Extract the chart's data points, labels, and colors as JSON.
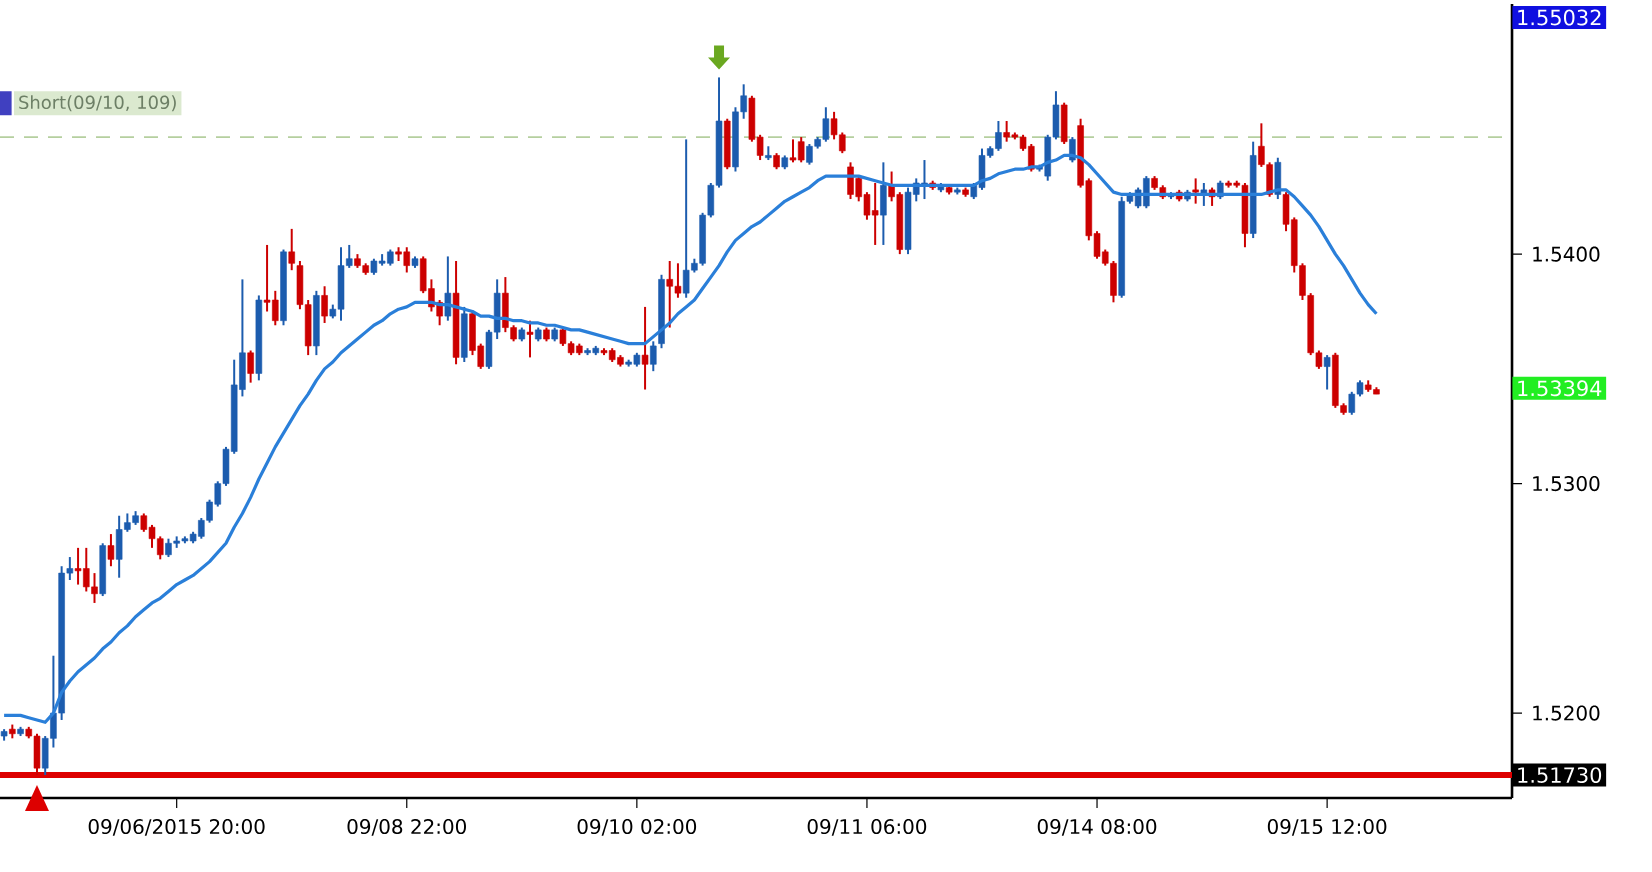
{
  "chart_data": {
    "type": "candlestick",
    "categories": [
      null,
      null,
      null,
      null,
      null,
      null,
      null,
      null,
      null,
      null,
      null,
      null,
      null,
      null,
      null,
      null,
      null,
      null,
      null,
      null,
      null,
      "09/06/2015 20:00",
      null,
      null,
      null,
      null,
      null,
      null,
      null,
      null,
      null,
      null,
      null,
      null,
      null,
      null,
      null,
      null,
      null,
      null,
      null,
      null,
      null,
      null,
      null,
      null,
      null,
      null,
      null,
      "09/08 22:00",
      null,
      null,
      null,
      null,
      null,
      null,
      null,
      null,
      null,
      null,
      null,
      null,
      null,
      null,
      null,
      null,
      null,
      null,
      null,
      null,
      null,
      null,
      null,
      null,
      null,
      null,
      null,
      "09/10 02:00",
      null,
      null,
      null,
      null,
      null,
      null,
      null,
      null,
      null,
      null,
      null,
      null,
      null,
      null,
      null,
      null,
      null,
      null,
      null,
      null,
      null,
      null,
      null,
      null,
      null,
      null,
      null,
      "09/11 06:00",
      null,
      null,
      null,
      null,
      null,
      null,
      null,
      null,
      null,
      null,
      null,
      null,
      null,
      null,
      null,
      null,
      null,
      null,
      null,
      null,
      null,
      null,
      null,
      null,
      null,
      null,
      null,
      "09/14 08:00",
      null,
      null,
      null,
      null,
      null,
      null,
      null,
      null,
      null,
      null,
      null,
      null,
      null,
      null,
      null,
      null,
      null,
      null,
      null,
      null,
      null,
      null,
      null,
      null,
      null,
      null,
      null,
      "09/15 12:00",
      null,
      null,
      null,
      null,
      null,
      null
    ],
    "ohlc": [
      [
        1.519,
        1.5193,
        1.5188,
        1.5192
      ],
      [
        1.5193,
        1.5195,
        1.5189,
        1.5191
      ],
      [
        1.5191,
        1.5194,
        1.519,
        1.5193
      ],
      [
        1.5193,
        1.5194,
        1.5189,
        1.519
      ],
      [
        1.519,
        1.5191,
        1.5173,
        1.5176
      ],
      [
        1.5176,
        1.519,
        1.5173,
        1.5189
      ],
      [
        1.5189,
        1.5225,
        1.5185,
        1.52
      ],
      [
        1.52,
        1.5264,
        1.5197,
        1.5261
      ],
      [
        1.5261,
        1.5268,
        1.5258,
        1.5263
      ],
      [
        1.5263,
        1.5272,
        1.5256,
        1.5262
      ],
      [
        1.5263,
        1.5272,
        1.5253,
        1.5255
      ],
      [
        1.5255,
        1.5261,
        1.5248,
        1.5252
      ],
      [
        1.5252,
        1.5274,
        1.5251,
        1.5273
      ],
      [
        1.5273,
        1.5278,
        1.5264,
        1.5267
      ],
      [
        1.5267,
        1.5286,
        1.5259,
        1.528
      ],
      [
        1.528,
        1.5287,
        1.5279,
        1.5283
      ],
      [
        1.5283,
        1.5288,
        1.5282,
        1.5286
      ],
      [
        1.5286,
        1.5287,
        1.5279,
        1.528
      ],
      [
        1.5281,
        1.5282,
        1.5272,
        1.5276
      ],
      [
        1.5276,
        1.5277,
        1.5267,
        1.5269
      ],
      [
        1.5269,
        1.5276,
        1.5268,
        1.5274
      ],
      [
        1.5274,
        1.5277,
        1.5272,
        1.5275
      ],
      [
        1.5275,
        1.5277,
        1.5274,
        1.5276
      ],
      [
        1.5275,
        1.5279,
        1.5274,
        1.5278
      ],
      [
        1.5277,
        1.5285,
        1.5276,
        1.5284
      ],
      [
        1.5284,
        1.5293,
        1.5283,
        1.5292
      ],
      [
        1.5291,
        1.5301,
        1.529,
        1.53
      ],
      [
        1.53,
        1.5316,
        1.5299,
        1.5315
      ],
      [
        1.5314,
        1.5354,
        1.5313,
        1.5343
      ],
      [
        1.5341,
        1.5389,
        1.5338,
        1.5357
      ],
      [
        1.5357,
        1.5358,
        1.5344,
        1.5348
      ],
      [
        1.5348,
        1.5382,
        1.5345,
        1.538
      ],
      [
        1.538,
        1.5404,
        1.5375,
        1.5379
      ],
      [
        1.538,
        1.5384,
        1.5369,
        1.5371
      ],
      [
        1.5371,
        1.5402,
        1.5369,
        1.5401
      ],
      [
        1.5401,
        1.5411,
        1.5393,
        1.5396
      ],
      [
        1.5395,
        1.5397,
        1.5376,
        1.5378
      ],
      [
        1.5378,
        1.538,
        1.5356,
        1.536
      ],
      [
        1.536,
        1.5384,
        1.5356,
        1.5382
      ],
      [
        1.5382,
        1.5386,
        1.537,
        1.5373
      ],
      [
        1.5373,
        1.5378,
        1.5372,
        1.5376
      ],
      [
        1.5376,
        1.5403,
        1.5371,
        1.5395
      ],
      [
        1.5395,
        1.5404,
        1.5394,
        1.5398
      ],
      [
        1.5398,
        1.54,
        1.5394,
        1.5395
      ],
      [
        1.5395,
        1.5396,
        1.5391,
        1.5392
      ],
      [
        1.5392,
        1.5398,
        1.5391,
        1.5397
      ],
      [
        1.5396,
        1.54,
        1.5395,
        1.5397
      ],
      [
        1.5396,
        1.5402,
        1.5395,
        1.5401
      ],
      [
        1.5401,
        1.5403,
        1.5397,
        1.54
      ],
      [
        1.5401,
        1.5403,
        1.5392,
        1.5395
      ],
      [
        1.5395,
        1.5399,
        1.5394,
        1.5398
      ],
      [
        1.5398,
        1.5399,
        1.5383,
        1.5384
      ],
      [
        1.5385,
        1.5389,
        1.5375,
        1.5377
      ],
      [
        1.5379,
        1.538,
        1.5369,
        1.5373
      ],
      [
        1.5373,
        1.5399,
        1.5371,
        1.5383
      ],
      [
        1.5383,
        1.5397,
        1.5352,
        1.5355
      ],
      [
        1.5355,
        1.5377,
        1.5353,
        1.5374
      ],
      [
        1.5374,
        1.5375,
        1.5356,
        1.5358
      ],
      [
        1.536,
        1.5361,
        1.535,
        1.5351
      ],
      [
        1.5351,
        1.5367,
        1.535,
        1.5366
      ],
      [
        1.5366,
        1.5389,
        1.5363,
        1.5383
      ],
      [
        1.5383,
        1.539,
        1.5366,
        1.5368
      ],
      [
        1.5368,
        1.5369,
        1.5362,
        1.5363
      ],
      [
        1.5363,
        1.5368,
        1.5362,
        1.5367
      ],
      [
        1.5366,
        1.5371,
        1.5355,
        1.5365
      ],
      [
        1.5363,
        1.5368,
        1.5362,
        1.5367
      ],
      [
        1.5367,
        1.5368,
        1.5362,
        1.5363
      ],
      [
        1.5363,
        1.5368,
        1.5362,
        1.5367
      ],
      [
        1.5367,
        1.5368,
        1.536,
        1.5361
      ],
      [
        1.5361,
        1.5362,
        1.5356,
        1.5357
      ],
      [
        1.536,
        1.5361,
        1.5356,
        1.5357
      ],
      [
        1.5357,
        1.5359,
        1.5356,
        1.5358
      ],
      [
        1.5357,
        1.536,
        1.5356,
        1.5359
      ],
      [
        1.5358,
        1.5359,
        1.5356,
        1.5357
      ],
      [
        1.5358,
        1.5359,
        1.5353,
        1.5354
      ],
      [
        1.5355,
        1.5356,
        1.5351,
        1.5352
      ],
      [
        1.5352,
        1.5354,
        1.5351,
        1.5353
      ],
      [
        1.5352,
        1.5357,
        1.5351,
        1.5356
      ],
      [
        1.5356,
        1.5377,
        1.5341,
        1.5352
      ],
      [
        1.5352,
        1.5362,
        1.5349,
        1.536
      ],
      [
        1.5361,
        1.5391,
        1.5359,
        1.5389
      ],
      [
        1.5389,
        1.5397,
        1.5368,
        1.5386
      ],
      [
        1.5386,
        1.5396,
        1.5381,
        1.5383
      ],
      [
        1.5383,
        1.545,
        1.5381,
        1.5393
      ],
      [
        1.5393,
        1.5398,
        1.5392,
        1.5396
      ],
      [
        1.5396,
        1.5418,
        1.5395,
        1.5417
      ],
      [
        1.5417,
        1.5431,
        1.5416,
        1.543
      ],
      [
        1.543,
        1.5477,
        1.5429,
        1.5458
      ],
      [
        1.5458,
        1.5459,
        1.5437,
        1.5438
      ],
      [
        1.5438,
        1.5464,
        1.5436,
        1.5462
      ],
      [
        1.5462,
        1.5474,
        1.5459,
        1.5469
      ],
      [
        1.5468,
        1.5469,
        1.5449,
        1.545
      ],
      [
        1.5451,
        1.5452,
        1.5441,
        1.5443
      ],
      [
        1.5442,
        1.5447,
        1.5441,
        1.5443
      ],
      [
        1.5443,
        1.5444,
        1.5437,
        1.5438
      ],
      [
        1.5438,
        1.5443,
        1.5437,
        1.5442
      ],
      [
        1.5442,
        1.545,
        1.544,
        1.5441
      ],
      [
        1.5449,
        1.5451,
        1.544,
        1.5441
      ],
      [
        1.544,
        1.5448,
        1.5439,
        1.5447
      ],
      [
        1.5447,
        1.5451,
        1.5446,
        1.545
      ],
      [
        1.545,
        1.5464,
        1.5449,
        1.5459
      ],
      [
        1.5459,
        1.5462,
        1.545,
        1.5452
      ],
      [
        1.5452,
        1.5453,
        1.5444,
        1.5445
      ],
      [
        1.5438,
        1.544,
        1.5424,
        1.5426
      ],
      [
        1.5433,
        1.5434,
        1.5423,
        1.5425
      ],
      [
        1.5426,
        1.5427,
        1.5415,
        1.5417
      ],
      [
        1.5419,
        1.5431,
        1.5404,
        1.5417
      ],
      [
        1.5417,
        1.544,
        1.5404,
        1.543
      ],
      [
        1.543,
        1.5436,
        1.5423,
        1.5425
      ],
      [
        1.5426,
        1.5427,
        1.54,
        1.5402
      ],
      [
        1.5402,
        1.5429,
        1.54,
        1.5427
      ],
      [
        1.5426,
        1.5433,
        1.5423,
        1.5431
      ],
      [
        1.543,
        1.5441,
        1.5424,
        1.5431
      ],
      [
        1.5431,
        1.5432,
        1.5428,
        1.5429
      ],
      [
        1.5428,
        1.5431,
        1.5427,
        1.543
      ],
      [
        1.5429,
        1.543,
        1.5426,
        1.5427
      ],
      [
        1.5427,
        1.5429,
        1.5426,
        1.5428
      ],
      [
        1.5428,
        1.5429,
        1.5425,
        1.5426
      ],
      [
        1.5425,
        1.5431,
        1.5424,
        1.543
      ],
      [
        1.5429,
        1.5446,
        1.5428,
        1.5443
      ],
      [
        1.5443,
        1.5447,
        1.5442,
        1.5446
      ],
      [
        1.5446,
        1.5458,
        1.5445,
        1.5453
      ],
      [
        1.5453,
        1.5458,
        1.5449,
        1.5451
      ],
      [
        1.5452,
        1.5453,
        1.545,
        1.5451
      ],
      [
        1.5451,
        1.5452,
        1.5445,
        1.5446
      ],
      [
        1.5447,
        1.5448,
        1.5436,
        1.5437
      ],
      [
        1.5437,
        1.5439,
        1.5436,
        1.5438
      ],
      [
        1.5434,
        1.5452,
        1.5432,
        1.5451
      ],
      [
        1.5451,
        1.5471,
        1.545,
        1.5465
      ],
      [
        1.5465,
        1.5466,
        1.5448,
        1.5449
      ],
      [
        1.5441,
        1.5451,
        1.544,
        1.545
      ],
      [
        1.5456,
        1.5459,
        1.5429,
        1.543
      ],
      [
        1.5432,
        1.5433,
        1.5406,
        1.5408
      ],
      [
        1.5409,
        1.541,
        1.5398,
        1.5399
      ],
      [
        1.5401,
        1.5402,
        1.5395,
        1.5396
      ],
      [
        1.5396,
        1.5397,
        1.5379,
        1.5382
      ],
      [
        1.5382,
        1.5425,
        1.5381,
        1.5423
      ],
      [
        1.5423,
        1.5427,
        1.5422,
        1.5426
      ],
      [
        1.5421,
        1.5429,
        1.542,
        1.5428
      ],
      [
        1.5421,
        1.5434,
        1.542,
        1.5433
      ],
      [
        1.5433,
        1.5434,
        1.5428,
        1.5429
      ],
      [
        1.5429,
        1.543,
        1.5424,
        1.5425
      ],
      [
        1.5425,
        1.5427,
        1.5424,
        1.5426
      ],
      [
        1.5427,
        1.5428,
        1.5423,
        1.5424
      ],
      [
        1.5424,
        1.5428,
        1.5423,
        1.5427
      ],
      [
        1.5428,
        1.5433,
        1.5422,
        1.5427
      ],
      [
        1.5426,
        1.5431,
        1.5421,
        1.5428
      ],
      [
        1.5428,
        1.5429,
        1.5421,
        1.5425
      ],
      [
        1.5425,
        1.5432,
        1.5424,
        1.5431
      ],
      [
        1.5431,
        1.5432,
        1.5429,
        1.543
      ],
      [
        1.5431,
        1.5432,
        1.5429,
        1.543
      ],
      [
        1.543,
        1.5431,
        1.5403,
        1.5409
      ],
      [
        1.5409,
        1.5449,
        1.5407,
        1.5443
      ],
      [
        1.5447,
        1.5457,
        1.5438,
        1.5439
      ],
      [
        1.5439,
        1.544,
        1.5425,
        1.5426
      ],
      [
        1.5426,
        1.5442,
        1.5424,
        1.544
      ],
      [
        1.5426,
        1.5427,
        1.541,
        1.5413
      ],
      [
        1.5415,
        1.5416,
        1.5392,
        1.5395
      ],
      [
        1.5395,
        1.5396,
        1.538,
        1.5382
      ],
      [
        1.5382,
        1.5383,
        1.5356,
        1.5357
      ],
      [
        1.5357,
        1.5358,
        1.535,
        1.5351
      ],
      [
        1.5351,
        1.5356,
        1.5341,
        1.5355
      ],
      [
        1.5356,
        1.5357,
        1.5333,
        1.5334
      ],
      [
        1.5334,
        1.5335,
        1.533,
        1.5331
      ],
      [
        1.5331,
        1.534,
        1.533,
        1.5339
      ],
      [
        1.5339,
        1.5345,
        1.5338,
        1.5344
      ],
      [
        1.5343,
        1.5345,
        1.534,
        1.5341
      ],
      [
        1.5341,
        1.5342,
        1.5339,
        1.5339
      ]
    ],
    "colors": [
      "#1c5cae",
      "#cc0000",
      "#1c5cae",
      "#cc0000",
      "#cc0000",
      "#1c5cae",
      "#1c5cae",
      "#1c5cae",
      "#1c5cae",
      "#cc0000",
      "#cc0000",
      "#cc0000",
      "#1c5cae",
      "#cc0000",
      "#1c5cae",
      "#1c5cae",
      "#1c5cae",
      "#cc0000",
      "#cc0000",
      "#cc0000",
      "#1c5cae",
      "#1c5cae",
      "#1c5cae",
      "#1c5cae",
      "#1c5cae",
      "#1c5cae",
      "#1c5cae",
      "#1c5cae",
      "#1c5cae",
      "#1c5cae",
      "#cc0000",
      "#1c5cae",
      "#cc0000",
      "#cc0000",
      "#1c5cae",
      "#cc0000",
      "#cc0000",
      "#cc0000",
      "#1c5cae",
      "#cc0000",
      "#1c5cae",
      "#1c5cae",
      "#1c5cae",
      "#cc0000",
      "#cc0000",
      "#1c5cae",
      "#1c5cae",
      "#1c5cae",
      "#cc0000",
      "#cc0000",
      "#1c5cae",
      "#cc0000",
      "#cc0000",
      "#cc0000",
      "#1c5cae",
      "#cc0000",
      "#1c5cae",
      "#cc0000",
      "#cc0000",
      "#1c5cae",
      "#1c5cae",
      "#cc0000",
      "#cc0000",
      "#1c5cae",
      "#cc0000",
      "#1c5cae",
      "#cc0000",
      "#1c5cae",
      "#cc0000",
      "#cc0000",
      "#cc0000",
      "#1c5cae",
      "#1c5cae",
      "#cc0000",
      "#cc0000",
      "#cc0000",
      "#1c5cae",
      "#1c5cae",
      "#cc0000",
      "#1c5cae",
      "#1c5cae",
      "#cc0000",
      "#cc0000",
      "#1c5cae",
      "#1c5cae",
      "#1c5cae",
      "#1c5cae",
      "#1c5cae",
      "#cc0000",
      "#1c5cae",
      "#1c5cae",
      "#cc0000",
      "#cc0000",
      "#1c5cae",
      "#cc0000",
      "#1c5cae",
      "#cc0000",
      "#cc0000",
      "#1c5cae",
      "#1c5cae",
      "#1c5cae",
      "#cc0000",
      "#cc0000",
      "#cc0000",
      "#cc0000",
      "#cc0000",
      "#cc0000",
      "#1c5cae",
      "#cc0000",
      "#cc0000",
      "#1c5cae",
      "#1c5cae",
      "#1c5cae",
      "#cc0000",
      "#1c5cae",
      "#cc0000",
      "#1c5cae",
      "#cc0000",
      "#1c5cae",
      "#1c5cae",
      "#1c5cae",
      "#1c5cae",
      "#cc0000",
      "#cc0000",
      "#cc0000",
      "#cc0000",
      "#1c5cae",
      "#1c5cae",
      "#1c5cae",
      "#cc0000",
      "#1c5cae",
      "#cc0000",
      "#cc0000",
      "#cc0000",
      "#cc0000",
      "#cc0000",
      "#1c5cae",
      "#1c5cae",
      "#1c5cae",
      "#1c5cae",
      "#cc0000",
      "#cc0000",
      "#1c5cae",
      "#cc0000",
      "#1c5cae",
      "#cc0000",
      "#1c5cae",
      "#cc0000",
      "#1c5cae",
      "#cc0000",
      "#cc0000",
      "#cc0000",
      "#1c5cae",
      "#cc0000",
      "#cc0000",
      "#1c5cae",
      "#cc0000",
      "#cc0000",
      "#cc0000",
      "#cc0000",
      "#cc0000",
      "#1c5cae",
      "#cc0000",
      "#cc0000",
      "#1c5cae",
      "#1c5cae",
      "#cc0000",
      "#cc0000"
    ],
    "series": [
      {
        "type": "line",
        "color": "#2a7fd9",
        "values": [
          1.5199,
          1.5199,
          1.5199,
          1.5198,
          1.5197,
          1.5196,
          1.52,
          1.5209,
          1.5214,
          1.5218,
          1.5221,
          1.5224,
          1.5228,
          1.5231,
          1.5235,
          1.5238,
          1.5242,
          1.5245,
          1.5248,
          1.525,
          1.5253,
          1.5256,
          1.5258,
          1.526,
          1.5263,
          1.5266,
          1.527,
          1.5274,
          1.5281,
          1.5287,
          1.5294,
          1.5302,
          1.5309,
          1.5316,
          1.5322,
          1.5328,
          1.5334,
          1.5339,
          1.5345,
          1.535,
          1.5353,
          1.5357,
          1.536,
          1.5363,
          1.5366,
          1.5369,
          1.5371,
          1.5374,
          1.5376,
          1.5377,
          1.5379,
          1.5379,
          1.5379,
          1.5378,
          1.5378,
          1.5377,
          1.5376,
          1.5375,
          1.5373,
          1.5373,
          1.5372,
          1.5372,
          1.5371,
          1.5371,
          1.537,
          1.537,
          1.5369,
          1.5369,
          1.5368,
          1.5367,
          1.5367,
          1.5366,
          1.5365,
          1.5364,
          1.5363,
          1.5362,
          1.5361,
          1.5361,
          1.5361,
          1.5364,
          1.5367,
          1.537,
          1.5374,
          1.5377,
          1.538,
          1.5385,
          1.539,
          1.5395,
          1.5401,
          1.5406,
          1.5409,
          1.5412,
          1.5414,
          1.5417,
          1.542,
          1.5423,
          1.5425,
          1.5427,
          1.5429,
          1.5432,
          1.5434,
          1.5434,
          1.5434,
          1.5434,
          1.5434,
          1.5433,
          1.5432,
          1.5431,
          1.543,
          1.543,
          1.543,
          1.543,
          1.543,
          1.543,
          1.543,
          1.543,
          1.543,
          1.543,
          1.543,
          1.5432,
          1.5433,
          1.5435,
          1.5436,
          1.5437,
          1.5437,
          1.5438,
          1.5438,
          1.544,
          1.5441,
          1.5443,
          1.5443,
          1.5442,
          1.5439,
          1.5435,
          1.5431,
          1.5427,
          1.5426,
          1.5426,
          1.5426,
          1.5426,
          1.5426,
          1.5426,
          1.5426,
          1.5426,
          1.5426,
          1.5426,
          1.5426,
          1.5426,
          1.5426,
          1.5426,
          1.5426,
          1.5426,
          1.5426,
          1.5426,
          1.5427,
          1.5428,
          1.5428,
          1.5425,
          1.5421,
          1.5417,
          1.5412,
          1.5406,
          1.54,
          1.5395,
          1.5389,
          1.5383,
          1.5378,
          1.5374
        ]
      }
    ],
    "ylim": [
      1.5163,
      1.5509
    ],
    "yticks": [
      {
        "value": 1.52,
        "label": "1.5200"
      },
      {
        "value": 1.53,
        "label": "1.5300"
      },
      {
        "value": 1.54,
        "label": "1.5400"
      }
    ],
    "ref_lines": [
      {
        "axis": "y",
        "value": 1.5173,
        "label": "1.51730",
        "color": "#dd0000"
      },
      {
        "axis": "y",
        "value": 1.5451,
        "color": "#b5cf9f",
        "line_style": "dashed"
      }
    ],
    "annotations": [
      "Short(09/10, 109)",
      "1.55032",
      "1.53394"
    ],
    "grid": false
  }
}
